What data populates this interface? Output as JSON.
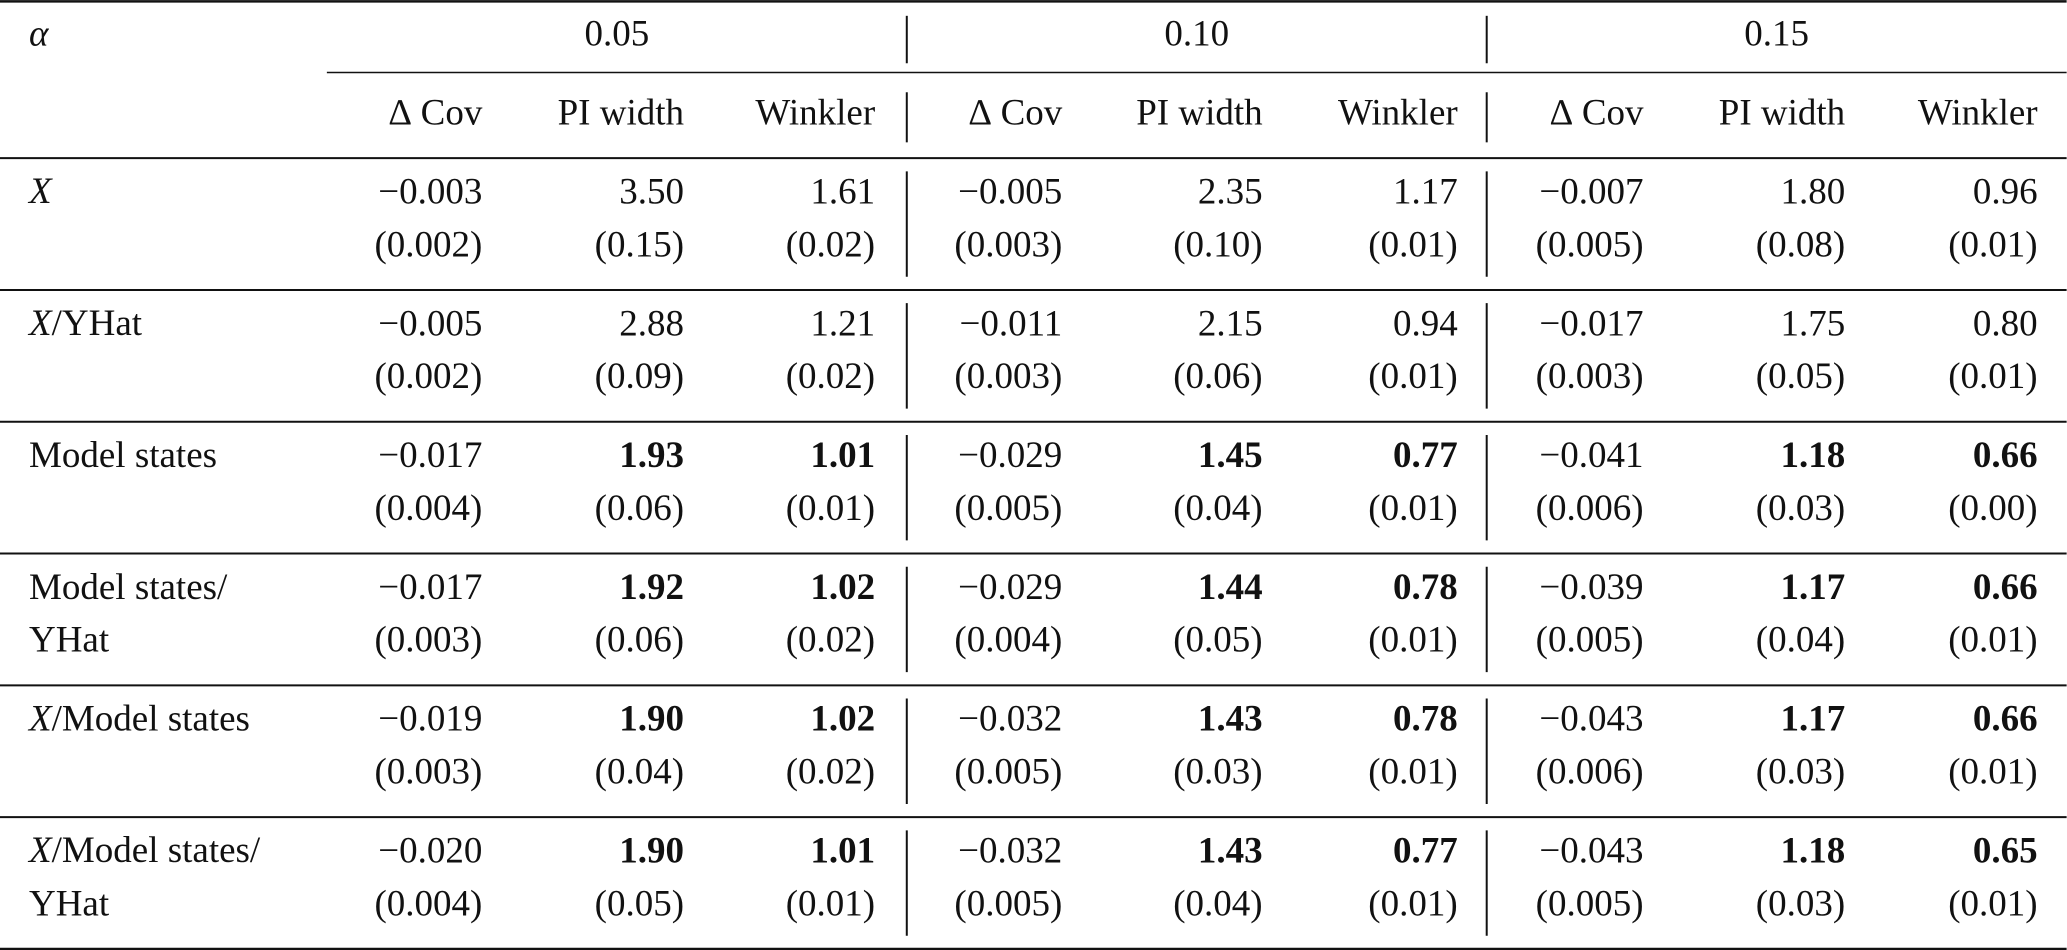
{
  "table": {
    "corner": "α",
    "groups": [
      "0.05",
      "0.10",
      "0.15"
    ],
    "columns": [
      "∆ Cov",
      "PI width",
      "Winkler"
    ],
    "rows": [
      {
        "label": [
          "X"
        ],
        "cells": [
          {
            "value": "−0.003",
            "se": "(0.002)"
          },
          {
            "value": "3.50",
            "se": "(0.15)"
          },
          {
            "value": "1.61",
            "se": "(0.02)"
          },
          {
            "value": "−0.005",
            "se": "(0.003)"
          },
          {
            "value": "2.35",
            "se": "(0.10)"
          },
          {
            "value": "1.17",
            "se": "(0.01)"
          },
          {
            "value": "−0.007",
            "se": "(0.005)"
          },
          {
            "value": "1.80",
            "se": "(0.08)"
          },
          {
            "value": "0.96",
            "se": "(0.01)"
          }
        ]
      },
      {
        "label": [
          "X/YHat"
        ],
        "cells": [
          {
            "value": "−0.005",
            "se": "(0.002)"
          },
          {
            "value": "2.88",
            "se": "(0.09)"
          },
          {
            "value": "1.21",
            "se": "(0.02)"
          },
          {
            "value": "−0.011",
            "se": "(0.003)"
          },
          {
            "value": "2.15",
            "se": "(0.06)"
          },
          {
            "value": "0.94",
            "se": "(0.01)"
          },
          {
            "value": "−0.017",
            "se": "(0.003)"
          },
          {
            "value": "1.75",
            "se": "(0.05)"
          },
          {
            "value": "0.80",
            "se": "(0.01)"
          }
        ]
      },
      {
        "label": [
          "Model states"
        ],
        "cells": [
          {
            "value": "−0.017",
            "se": "(0.004)"
          },
          {
            "value": "1.93",
            "se": "(0.06)",
            "bold": true
          },
          {
            "value": "1.01",
            "se": "(0.01)",
            "bold": true
          },
          {
            "value": "−0.029",
            "se": "(0.005)"
          },
          {
            "value": "1.45",
            "se": "(0.04)",
            "bold": true
          },
          {
            "value": "0.77",
            "se": "(0.01)",
            "bold": true
          },
          {
            "value": "−0.041",
            "se": "(0.006)"
          },
          {
            "value": "1.18",
            "se": "(0.03)",
            "bold": true
          },
          {
            "value": "0.66",
            "se": "(0.00)",
            "bold": true
          }
        ]
      },
      {
        "label": [
          "Model states/",
          "YHat"
        ],
        "cells": [
          {
            "value": "−0.017",
            "se": "(0.003)"
          },
          {
            "value": "1.92",
            "se": "(0.06)",
            "bold": true
          },
          {
            "value": "1.02",
            "se": "(0.02)",
            "bold": true
          },
          {
            "value": "−0.029",
            "se": "(0.004)"
          },
          {
            "value": "1.44",
            "se": "(0.05)",
            "bold": true
          },
          {
            "value": "0.78",
            "se": "(0.01)",
            "bold": true
          },
          {
            "value": "−0.039",
            "se": "(0.005)"
          },
          {
            "value": "1.17",
            "se": "(0.04)",
            "bold": true
          },
          {
            "value": "0.66",
            "se": "(0.01)",
            "bold": true
          }
        ]
      },
      {
        "label": [
          "X/Model states"
        ],
        "cells": [
          {
            "value": "−0.019",
            "se": "(0.003)"
          },
          {
            "value": "1.90",
            "se": "(0.04)",
            "bold": true
          },
          {
            "value": "1.02",
            "se": "(0.02)",
            "bold": true
          },
          {
            "value": "−0.032",
            "se": "(0.005)"
          },
          {
            "value": "1.43",
            "se": "(0.03)",
            "bold": true
          },
          {
            "value": "0.78",
            "se": "(0.01)",
            "bold": true
          },
          {
            "value": "−0.043",
            "se": "(0.006)"
          },
          {
            "value": "1.17",
            "se": "(0.03)",
            "bold": true
          },
          {
            "value": "0.66",
            "se": "(0.01)",
            "bold": true
          }
        ]
      },
      {
        "label": [
          "X/Model states/",
          "YHat"
        ],
        "cells": [
          {
            "value": "−0.020",
            "se": "(0.004)"
          },
          {
            "value": "1.90",
            "se": "(0.05)",
            "bold": true
          },
          {
            "value": "1.01",
            "se": "(0.01)",
            "bold": true
          },
          {
            "value": "−0.032",
            "se": "(0.005)"
          },
          {
            "value": "1.43",
            "se": "(0.04)",
            "bold": true
          },
          {
            "value": "0.77",
            "se": "(0.01)",
            "bold": true
          },
          {
            "value": "−0.043",
            "se": "(0.005)"
          },
          {
            "value": "1.18",
            "se": "(0.03)",
            "bold": true
          },
          {
            "value": "0.65",
            "se": "(0.01)",
            "bold": true
          }
        ]
      }
    ]
  }
}
